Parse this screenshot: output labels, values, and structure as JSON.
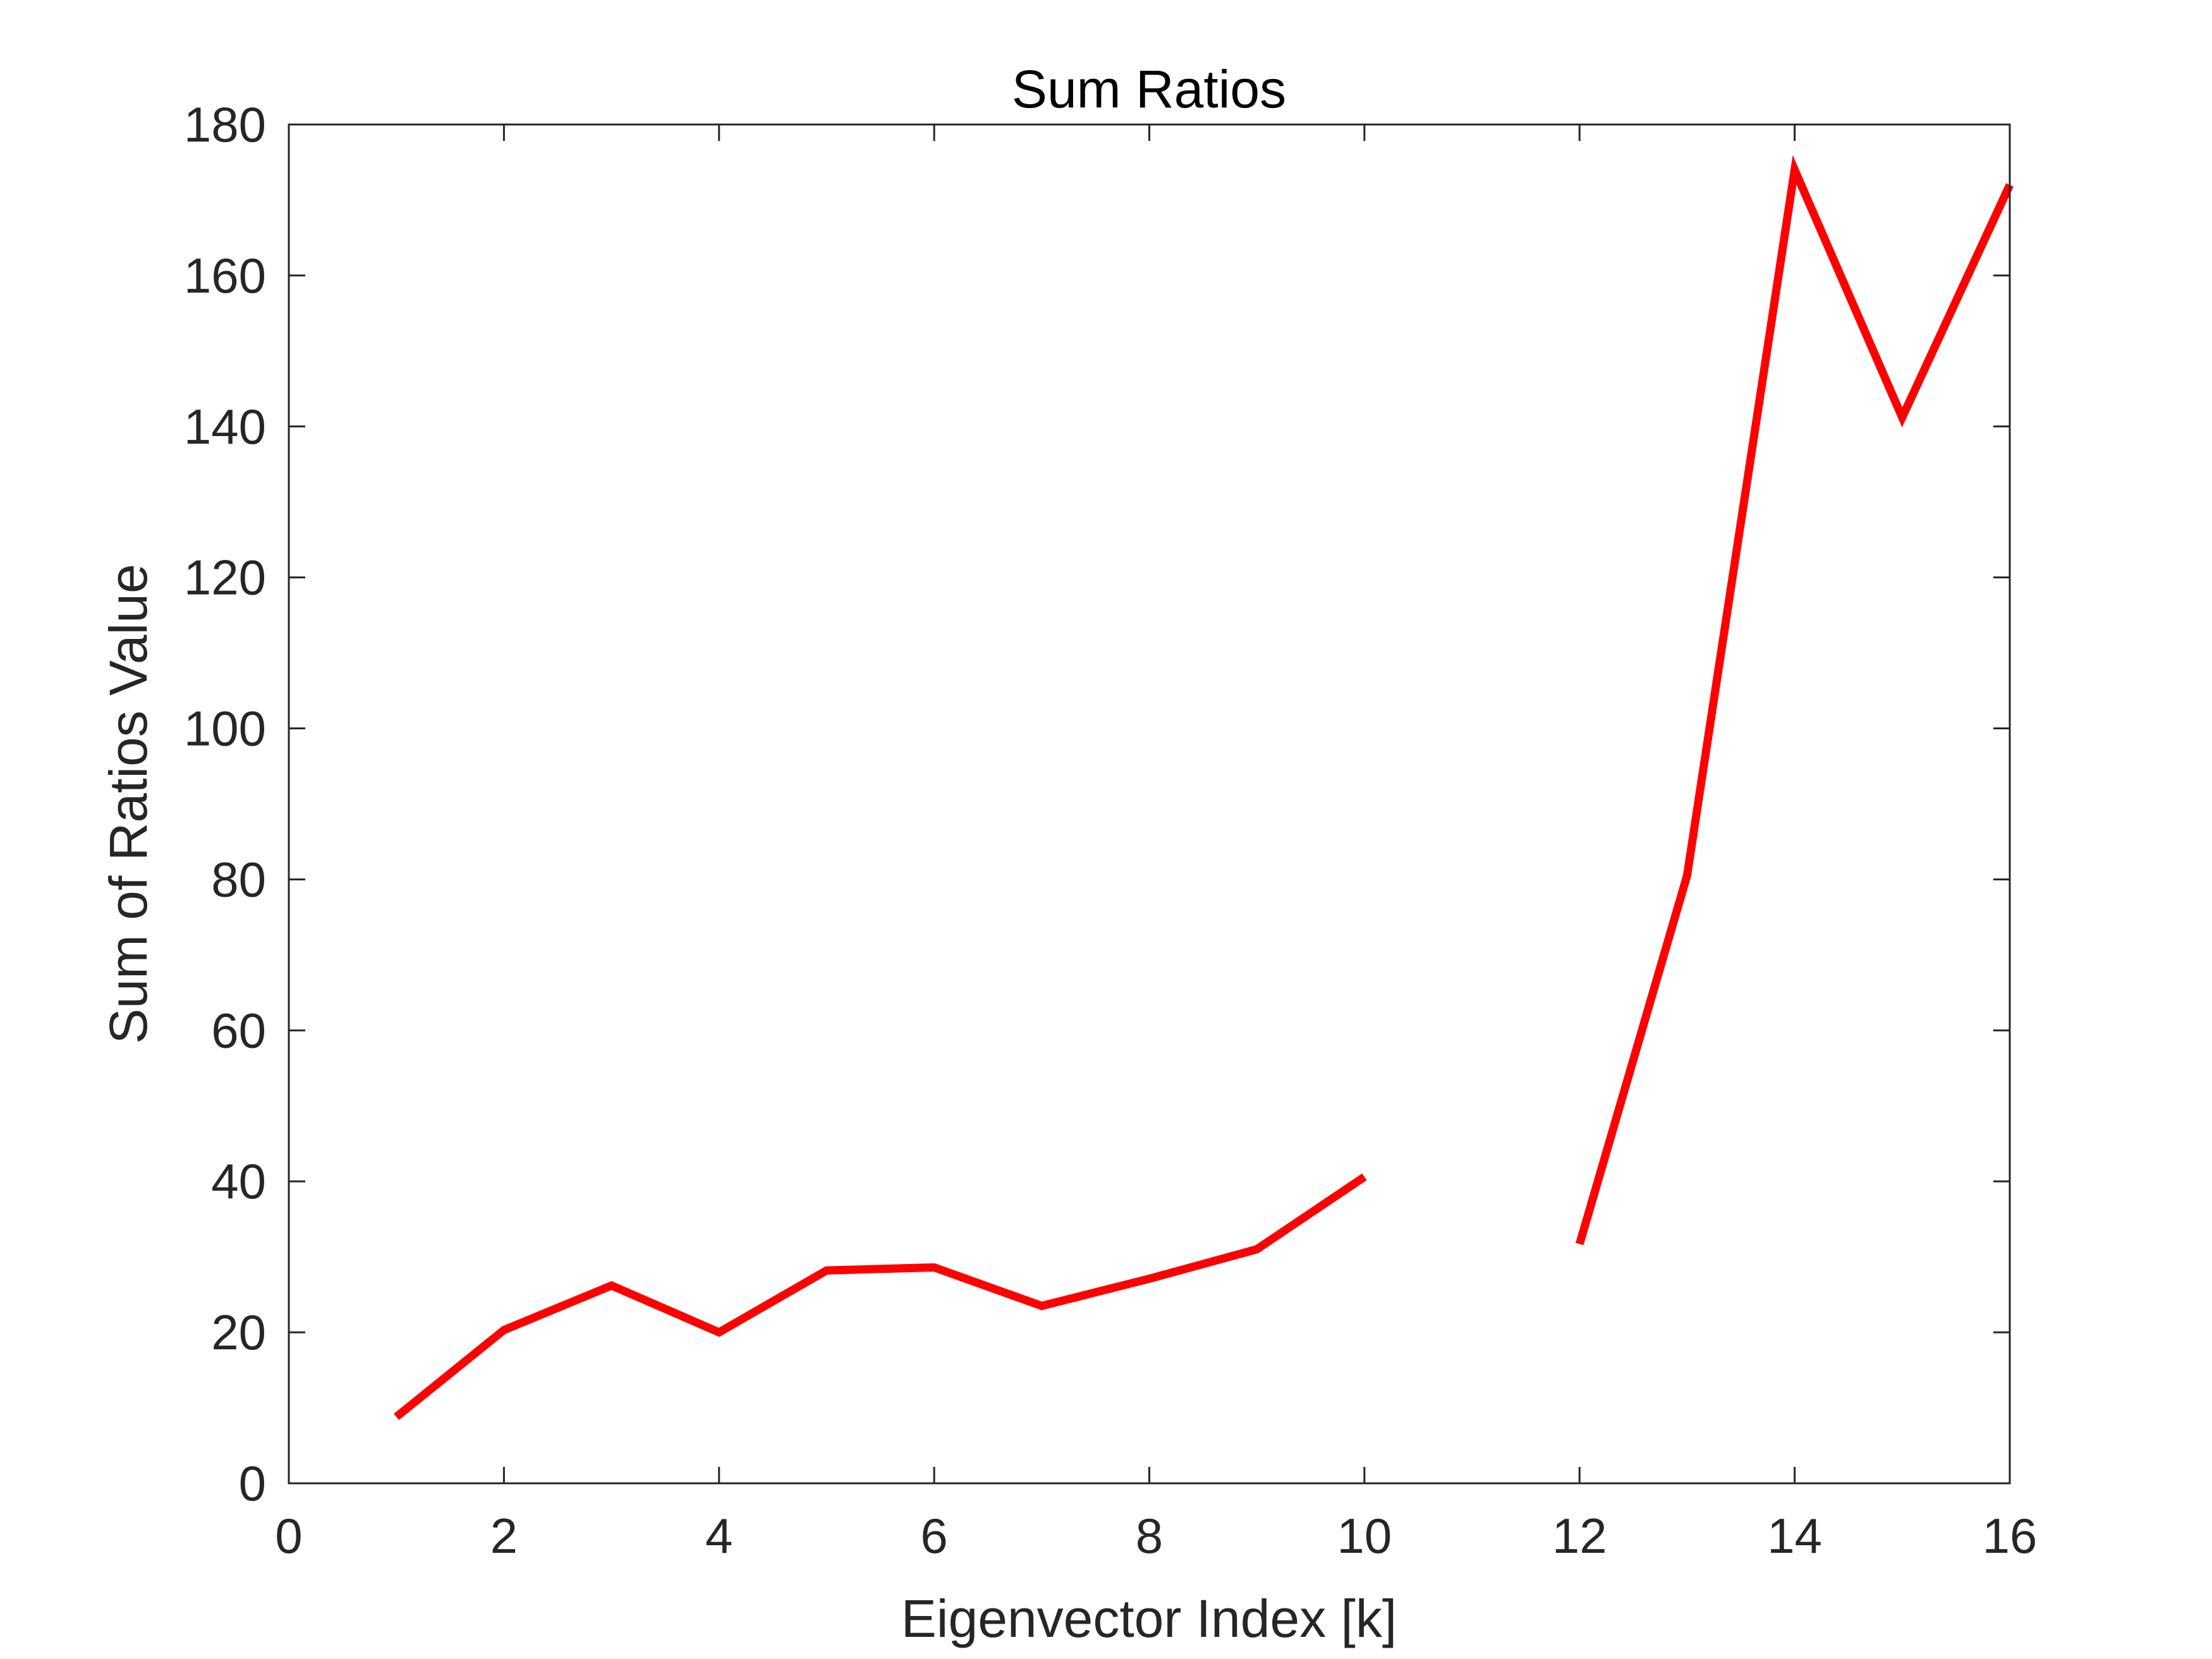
{
  "chart_data": {
    "type": "line",
    "title": "Sum Ratios",
    "xlabel": "Eigenvector Index [k]",
    "ylabel": "Sum of Ratios Value",
    "xlim": [
      0,
      16
    ],
    "ylim": [
      0,
      180
    ],
    "x_ticks": [
      "0",
      "2",
      "4",
      "6",
      "8",
      "10",
      "12",
      "14",
      "16"
    ],
    "y_ticks": [
      "0",
      "20",
      "40",
      "60",
      "80",
      "100",
      "120",
      "140",
      "160",
      "180"
    ],
    "grid": false,
    "legend": "none",
    "series": [
      {
        "color": "#ff0000",
        "x": [
          1,
          2,
          3,
          4,
          5,
          6,
          7,
          8,
          9,
          10,
          11,
          12,
          13,
          14,
          15,
          16
        ],
        "y": [
          8.8,
          20.3,
          26.2,
          20.0,
          28.2,
          28.6,
          23.5,
          27.1,
          31.0,
          40.6,
          null,
          31.7,
          80.5,
          174.0,
          141.2,
          172.0
        ]
      }
    ]
  }
}
